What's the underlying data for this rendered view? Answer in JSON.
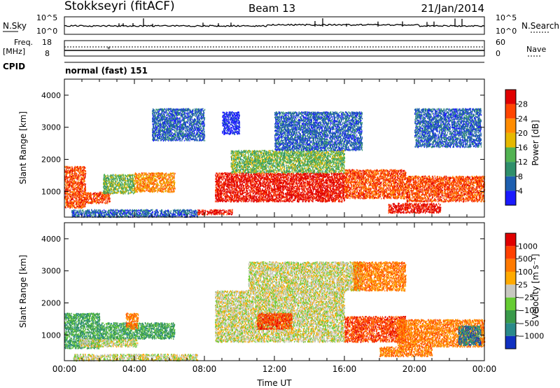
{
  "header": {
    "title": "Stokkseyri (fitACF)",
    "beam": "Beam 13",
    "date": "21/Jan/2014"
  },
  "strip": {
    "nsky_label": "N.Sky",
    "nsearch_label": "N.Search",
    "tick_top": "10^5",
    "tick_bottom": "10^0",
    "freq_label": "Freq.",
    "freq_unit": "[MHz]",
    "freq_ticks": [
      "18",
      "8"
    ],
    "nave_ticks": [
      "60",
      "0"
    ],
    "nave_label": "Nave",
    "cpid_label": "CPID",
    "cpid_value": "normal (fast) 151"
  },
  "chart_data": [
    {
      "type": "heatmap",
      "name": "power",
      "ylabel": "Slant Range [km]",
      "xlabel": "",
      "xlim": [
        0,
        24
      ],
      "ylim": [
        200,
        4500
      ],
      "x_ticks": [
        "00:00",
        "04:00",
        "08:00",
        "12:00",
        "16:00",
        "20:00",
        "00:00"
      ],
      "y_ticks": [
        1000,
        2000,
        3000,
        4000
      ],
      "colorbar": {
        "label": "Power [dB]",
        "ticks": [
          "4",
          "8",
          "12",
          "16",
          "20",
          "24",
          "28"
        ],
        "colors": [
          "#1a1aff",
          "#1e5fb0",
          "#2f8f6b",
          "#52b352",
          "#e6b800",
          "#ff8c00",
          "#ff4500",
          "#e00000"
        ]
      },
      "regions": [
        {
          "x0": 0.0,
          "x1": 1.2,
          "y0": 500,
          "y1": 1800,
          "c": 6
        },
        {
          "x0": 1.2,
          "x1": 2.6,
          "y0": 650,
          "y1": 1000,
          "c": 6
        },
        {
          "x0": 2.2,
          "x1": 4.0,
          "y0": 950,
          "y1": 1550,
          "c": 3
        },
        {
          "x0": 4.0,
          "x1": 6.3,
          "y0": 1000,
          "y1": 1600,
          "c": 5
        },
        {
          "x0": 0.4,
          "x1": 7.6,
          "y0": 220,
          "y1": 450,
          "c": 1
        },
        {
          "x0": 7.6,
          "x1": 9.6,
          "y0": 300,
          "y1": 450,
          "c": 7
        },
        {
          "x0": 8.6,
          "x1": 16.0,
          "y0": 700,
          "y1": 1600,
          "c": 7
        },
        {
          "x0": 9.5,
          "x1": 16.0,
          "y0": 1600,
          "y1": 2300,
          "c": 3
        },
        {
          "x0": 12.0,
          "x1": 17.0,
          "y0": 2300,
          "y1": 3500,
          "c": 1
        },
        {
          "x0": 16.0,
          "x1": 19.5,
          "y0": 800,
          "y1": 1700,
          "c": 6
        },
        {
          "x0": 18.5,
          "x1": 21.5,
          "y0": 350,
          "y1": 650,
          "c": 7
        },
        {
          "x0": 19.5,
          "x1": 24.0,
          "y0": 700,
          "y1": 1500,
          "c": 6
        },
        {
          "x0": 20.0,
          "x1": 23.8,
          "y0": 2400,
          "y1": 3600,
          "c": 1
        },
        {
          "x0": 9.0,
          "x1": 10.0,
          "y0": 2800,
          "y1": 3500,
          "c": 0
        },
        {
          "x0": 5.0,
          "x1": 8.0,
          "y0": 2600,
          "y1": 3600,
          "c": 1
        }
      ]
    },
    {
      "type": "heatmap",
      "name": "velocity",
      "ylabel": "Slant Range [km]",
      "xlabel": "Time UT",
      "xlim": [
        0,
        24
      ],
      "ylim": [
        200,
        4500
      ],
      "x_ticks": [
        "00:00",
        "04:00",
        "08:00",
        "12:00",
        "16:00",
        "20:00",
        "00:00"
      ],
      "y_ticks": [
        1000,
        2000,
        3000,
        4000
      ],
      "colorbar": {
        "label": "Velocity [m s⁻¹]",
        "ticks": [
          "1000",
          "500",
          "100",
          "25",
          "−25",
          "−100",
          "−500",
          "−1000"
        ],
        "colors": [
          "#1030c0",
          "#2a8a8a",
          "#3a9a4a",
          "#66cc33",
          "#c8c8c0",
          "#ffaa00",
          "#ff7a00",
          "#ff4000",
          "#e00000"
        ]
      },
      "regions": [
        {
          "x0": 0.0,
          "x1": 2.0,
          "y0": 600,
          "y1": 1700,
          "c": 2
        },
        {
          "x0": 0.8,
          "x1": 4.2,
          "y0": 650,
          "y1": 900,
          "c": 4
        },
        {
          "x0": 2.0,
          "x1": 6.3,
          "y0": 900,
          "y1": 1400,
          "c": 2
        },
        {
          "x0": 3.5,
          "x1": 4.2,
          "y0": 1200,
          "y1": 1700,
          "c": 6
        },
        {
          "x0": 8.6,
          "x1": 16.0,
          "y0": 800,
          "y1": 2400,
          "c": 4
        },
        {
          "x0": 10.5,
          "x1": 17.0,
          "y0": 2400,
          "y1": 3300,
          "c": 4
        },
        {
          "x0": 11.0,
          "x1": 13.0,
          "y0": 1200,
          "y1": 1700,
          "c": 7
        },
        {
          "x0": 16.0,
          "x1": 19.5,
          "y0": 800,
          "y1": 1600,
          "c": 7
        },
        {
          "x0": 19.0,
          "x1": 24.0,
          "y0": 650,
          "y1": 1500,
          "c": 6
        },
        {
          "x0": 18.0,
          "x1": 21.0,
          "y0": 350,
          "y1": 650,
          "c": 6
        },
        {
          "x0": 22.5,
          "x1": 23.8,
          "y0": 700,
          "y1": 1300,
          "c": 1
        },
        {
          "x0": 0.5,
          "x1": 7.6,
          "y0": 220,
          "y1": 420,
          "c": 4
        },
        {
          "x0": 16.5,
          "x1": 19.5,
          "y0": 2400,
          "y1": 3300,
          "c": 6
        }
      ]
    }
  ]
}
